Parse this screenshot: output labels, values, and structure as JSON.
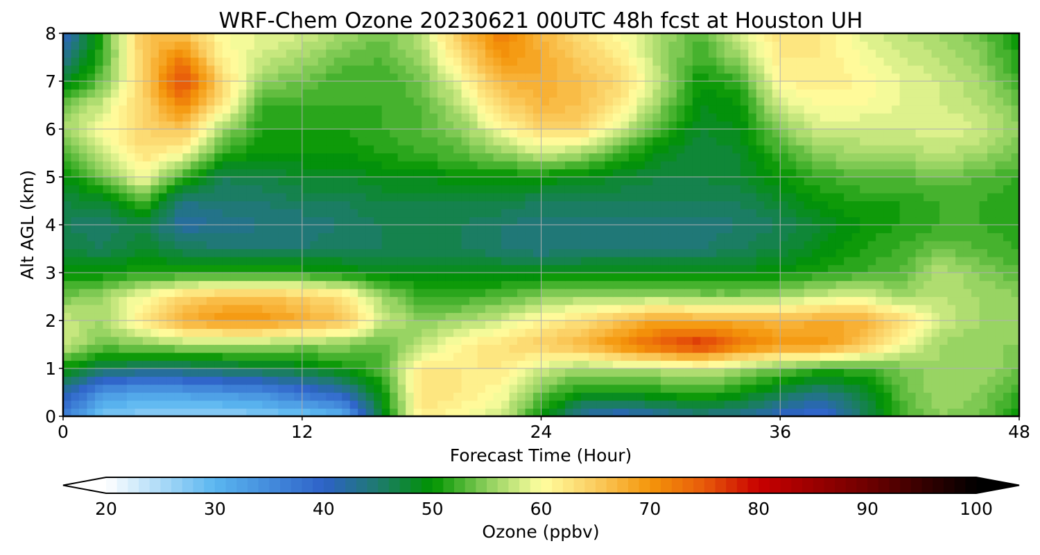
{
  "chart_data": {
    "type": "heatmap",
    "title": "WRF-Chem Ozone  20230621 00UTC 48h fcst at Houston UH",
    "xlabel": "Forecast Time (Hour)",
    "ylabel": "Alt AGL (km)",
    "xlim": [
      0,
      48
    ],
    "ylim": [
      0,
      8
    ],
    "x_ticks": [
      0,
      12,
      24,
      36,
      48
    ],
    "y_ticks": [
      0,
      1,
      2,
      3,
      4,
      5,
      6,
      7,
      8
    ],
    "grid": true,
    "x": [
      0,
      2,
      4,
      6,
      8,
      10,
      12,
      14,
      16,
      18,
      20,
      22,
      24,
      26,
      28,
      30,
      32,
      34,
      36,
      38,
      40,
      42,
      44,
      46,
      48
    ],
    "y": [
      0,
      0.5,
      1,
      1.5,
      2,
      2.5,
      3,
      3.5,
      4,
      4.5,
      5,
      5.5,
      6,
      6.5,
      7,
      7.5,
      8
    ],
    "z": [
      [
        36,
        28,
        27,
        26,
        26,
        27,
        28,
        30,
        48,
        62,
        60,
        58,
        50,
        42,
        40,
        42,
        44,
        43,
        40,
        38,
        45,
        52,
        55,
        54,
        50
      ],
      [
        42,
        34,
        32,
        33,
        34,
        35,
        38,
        41,
        50,
        63,
        62,
        60,
        54,
        50,
        50,
        51,
        52,
        50,
        47,
        44,
        47,
        53,
        56,
        55,
        52
      ],
      [
        50,
        46,
        45,
        45,
        46,
        47,
        48,
        50,
        53,
        62,
        62,
        62,
        58,
        56,
        57,
        57,
        58,
        56,
        54,
        52,
        52,
        54,
        56,
        56,
        54
      ],
      [
        58,
        54,
        55,
        56,
        56,
        56,
        55,
        55,
        53,
        57,
        61,
        63,
        65,
        67,
        71,
        75,
        78,
        73,
        70,
        70,
        66,
        60,
        56,
        55,
        55
      ],
      [
        58,
        56,
        62,
        68,
        70,
        70,
        68,
        66,
        58,
        55,
        56,
        58,
        61,
        63,
        66,
        69,
        68,
        68,
        67,
        68,
        68,
        64,
        58,
        56,
        56
      ],
      [
        54,
        56,
        60,
        64,
        66,
        66,
        65,
        63,
        56,
        52,
        52,
        53,
        55,
        56,
        56,
        56,
        55,
        55,
        56,
        58,
        59,
        56,
        57,
        56,
        55
      ],
      [
        50,
        50,
        51,
        51,
        51,
        51,
        51,
        50,
        49,
        49,
        49,
        49,
        49,
        49,
        49,
        49,
        49,
        49,
        50,
        51,
        52,
        53,
        57,
        55,
        53
      ],
      [
        47,
        46,
        48,
        46,
        45,
        45,
        45,
        46,
        46,
        46,
        46,
        45,
        44,
        45,
        45,
        45,
        45,
        46,
        47,
        49,
        51,
        52,
        54,
        53,
        52
      ],
      [
        46,
        45,
        47,
        42,
        43,
        44,
        44,
        45,
        46,
        46,
        46,
        45,
        44,
        44,
        44,
        44,
        44,
        45,
        46,
        48,
        50,
        51,
        52,
        52,
        51
      ],
      [
        47,
        48,
        53,
        44,
        45,
        45,
        46,
        46,
        47,
        47,
        47,
        47,
        46,
        46,
        46,
        46,
        46,
        46,
        48,
        50,
        51,
        51,
        52,
        52,
        51
      ],
      [
        49,
        54,
        60,
        52,
        46,
        47,
        48,
        48,
        49,
        49,
        50,
        50,
        50,
        49,
        48,
        47,
        47,
        48,
        50,
        52,
        53,
        53,
        54,
        53,
        52
      ],
      [
        52,
        58,
        63,
        60,
        52,
        50,
        50,
        50,
        51,
        52,
        53,
        55,
        58,
        56,
        52,
        49,
        47,
        48,
        52,
        55,
        56,
        56,
        57,
        56,
        54
      ],
      [
        56,
        60,
        64,
        66,
        56,
        51,
        51,
        51,
        52,
        53,
        55,
        60,
        64,
        64,
        58,
        52,
        48,
        49,
        55,
        58,
        58,
        58,
        59,
        58,
        55
      ],
      [
        54,
        58,
        64,
        71,
        62,
        52,
        52,
        52,
        52,
        53,
        57,
        64,
        67,
        66,
        62,
        55,
        49,
        50,
        58,
        60,
        60,
        59,
        58,
        57,
        54
      ],
      [
        48,
        54,
        64,
        77,
        64,
        55,
        54,
        52,
        52,
        54,
        60,
        67,
        68,
        66,
        64,
        57,
        50,
        52,
        61,
        62,
        61,
        59,
        58,
        56,
        52
      ],
      [
        43,
        52,
        65,
        72,
        61,
        58,
        56,
        54,
        53,
        56,
        63,
        70,
        68,
        65,
        62,
        56,
        52,
        56,
        62,
        62,
        60,
        58,
        57,
        55,
        51
      ],
      [
        40,
        52,
        66,
        66,
        60,
        59,
        58,
        56,
        54,
        57,
        66,
        72,
        67,
        63,
        60,
        56,
        53,
        58,
        63,
        62,
        59,
        57,
        56,
        54,
        50
      ]
    ],
    "colorbar": {
      "label": "Ozone  (ppbv)",
      "min": 20,
      "max": 100,
      "step": 1,
      "ticks": [
        20,
        30,
        40,
        50,
        60,
        70,
        80,
        90,
        100
      ],
      "extend": "both",
      "orientation": "horizontal",
      "placement": "bottom"
    },
    "colormap": [
      [
        20,
        "#ffffff"
      ],
      [
        30,
        "#5ab6f0"
      ],
      [
        40,
        "#2e62c8"
      ],
      [
        45,
        "#1e7a6e"
      ],
      [
        50,
        "#009400"
      ],
      [
        55,
        "#8ccf5c"
      ],
      [
        60,
        "#ffffa0"
      ],
      [
        65,
        "#fbcc60"
      ],
      [
        70,
        "#f4960a"
      ],
      [
        75,
        "#e85a0a"
      ],
      [
        80,
        "#c80000"
      ],
      [
        90,
        "#6e0000"
      ],
      [
        100,
        "#000000"
      ]
    ]
  }
}
